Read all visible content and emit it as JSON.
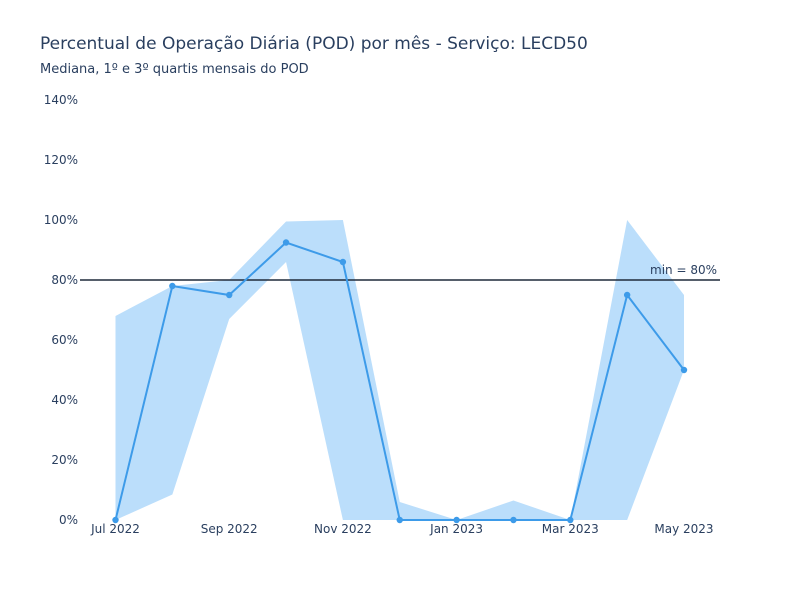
{
  "chart_data": {
    "type": "line",
    "title": "Percentual de Operação Diária (POD) por mês - Serviço: LECD50",
    "subtitle": "Mediana, 1º e 3º quartis mensais do POD",
    "x": [
      "2022-07",
      "2022-08",
      "2022-09",
      "2022-10",
      "2022-11",
      "2022-12",
      "2023-01",
      "2023-02",
      "2023-03",
      "2023-04",
      "2023-05"
    ],
    "x_tick_labels": [
      "Jul 2022",
      "Sep 2022",
      "Nov 2022",
      "Jan 2023",
      "Mar 2023",
      "May 2023"
    ],
    "x_tick_values": [
      "2022-07",
      "2022-09",
      "2022-11",
      "2023-01",
      "2023-03",
      "2023-05"
    ],
    "series": [
      {
        "role": "median",
        "values": [
          0,
          78,
          75,
          92.5,
          86,
          0,
          0,
          0,
          0,
          75,
          50
        ]
      },
      {
        "role": "q1",
        "values": [
          0,
          8.5,
          67,
          86,
          0,
          0,
          0,
          0,
          0,
          0,
          50
        ]
      },
      {
        "role": "q3",
        "values": [
          68,
          78,
          80,
          99.5,
          100,
          6,
          0,
          6.5,
          0,
          100,
          75
        ]
      }
    ],
    "ylim": [
      0,
      140
    ],
    "y_ticks": [
      0,
      20,
      40,
      60,
      80,
      100,
      120,
      140
    ],
    "y_tick_suffix": "%",
    "hline": {
      "value": 80,
      "label": "min = 80%"
    },
    "grid": false,
    "colors": {
      "line": "#3d9be9",
      "band": "#bbdefb",
      "hline": "#1f2a3a",
      "text": "#2a3f5f"
    }
  }
}
